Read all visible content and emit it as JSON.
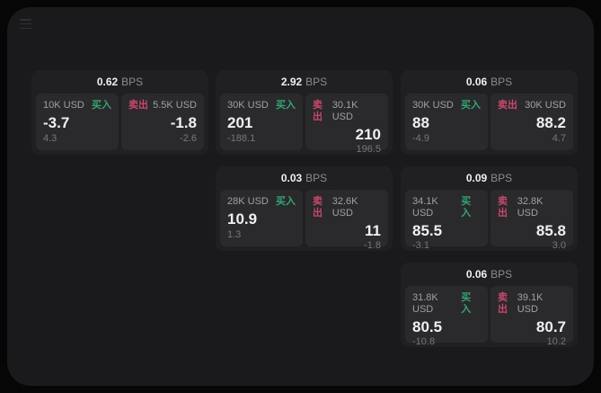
{
  "colors": {
    "surface": "#1a1a1c",
    "card_bg": "#202023",
    "panel_bg": "#2a2a2d",
    "buy_green": "#33a670",
    "sell_red": "#c8486b",
    "text_primary": "#f0f0f0",
    "text_secondary": "#a0a0a3",
    "text_muted": "#77777a",
    "bps_label": "#8b8b8e"
  },
  "menu": {
    "icon": "hamburger-menu"
  },
  "bps_unit_label": "BPS",
  "buy_label": "买入",
  "sell_label": "卖出",
  "cards": [
    {
      "col": 0,
      "row": 0,
      "bps_value": "0.62",
      "bps_unit": "BPS",
      "buy": {
        "amount": "10K USD",
        "action": "买入",
        "price": "-3.7",
        "delta": "4.3"
      },
      "sell": {
        "amount": "5.5K USD",
        "action": "卖出",
        "price": "-1.8",
        "delta": "-2.6"
      }
    },
    {
      "col": 1,
      "row": 0,
      "bps_value": "2.92",
      "bps_unit": "BPS",
      "buy": {
        "amount": "30K USD",
        "action": "买入",
        "price": "201",
        "delta": "-188.1"
      },
      "sell": {
        "amount": "30.1K USD",
        "action": "卖出",
        "price": "210",
        "delta": "196.5"
      }
    },
    {
      "col": 2,
      "row": 0,
      "bps_value": "0.06",
      "bps_unit": "BPS",
      "buy": {
        "amount": "30K USD",
        "action": "买入",
        "price": "88",
        "delta": "-4.9"
      },
      "sell": {
        "amount": "30K USD",
        "action": "卖出",
        "price": "88.2",
        "delta": "4.7"
      }
    },
    {
      "col": 1,
      "row": 1,
      "bps_value": "0.03",
      "bps_unit": "BPS",
      "buy": {
        "amount": "28K USD",
        "action": "买入",
        "price": "10.9",
        "delta": "1.3"
      },
      "sell": {
        "amount": "32.6K USD",
        "action": "卖出",
        "price": "11",
        "delta": "-1.8"
      }
    },
    {
      "col": 2,
      "row": 1,
      "bps_value": "0.09",
      "bps_unit": "BPS",
      "buy": {
        "amount": "34.1K USD",
        "action": "买入",
        "price": "85.5",
        "delta": "-3.1"
      },
      "sell": {
        "amount": "32.8K USD",
        "action": "卖出",
        "price": "85.8",
        "delta": "3.0"
      }
    },
    {
      "col": 2,
      "row": 2,
      "bps_value": "0.06",
      "bps_unit": "BPS",
      "buy": {
        "amount": "31.8K USD",
        "action": "买入",
        "price": "80.5",
        "delta": "-10.8"
      },
      "sell": {
        "amount": "39.1K USD",
        "action": "卖出",
        "price": "80.7",
        "delta": "10.2"
      }
    }
  ]
}
